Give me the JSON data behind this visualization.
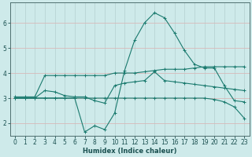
{
  "xlabel": "Humidex (Indice chaleur)",
  "background_color": "#ceeaea",
  "grid_color": "#b8d4d4",
  "line_color": "#1a7a6e",
  "xlim": [
    -0.5,
    23.5
  ],
  "ylim": [
    1.5,
    6.8
  ],
  "yticks": [
    2,
    3,
    4,
    5,
    6
  ],
  "xticks": [
    0,
    1,
    2,
    3,
    4,
    5,
    6,
    7,
    8,
    9,
    10,
    11,
    12,
    13,
    14,
    15,
    16,
    17,
    18,
    19,
    20,
    21,
    22,
    23
  ],
  "series": [
    {
      "x": [
        0,
        1,
        2,
        3,
        4,
        5,
        6,
        7,
        8,
        9,
        10,
        11,
        12,
        13,
        14,
        15,
        16,
        17,
        18,
        19,
        20,
        21,
        22,
        23
      ],
      "y": [
        3.05,
        3.05,
        3.05,
        3.9,
        3.9,
        3.9,
        3.9,
        3.9,
        3.9,
        3.9,
        4.0,
        4.0,
        4.0,
        4.05,
        4.1,
        4.15,
        4.15,
        4.15,
        4.2,
        4.25,
        4.25,
        4.25,
        4.25,
        4.25
      ]
    },
    {
      "x": [
        0,
        1,
        2,
        3,
        4,
        5,
        6,
        7,
        8,
        9,
        10,
        11,
        12,
        13,
        14,
        15,
        16,
        17,
        18,
        19,
        20,
        21,
        22,
        23
      ],
      "y": [
        3.0,
        3.0,
        3.0,
        3.3,
        3.25,
        3.1,
        3.05,
        3.05,
        2.9,
        2.8,
        3.5,
        3.6,
        3.65,
        3.7,
        4.05,
        3.7,
        3.65,
        3.6,
        3.55,
        3.5,
        3.45,
        3.4,
        3.35,
        3.3
      ]
    },
    {
      "x": [
        0,
        1,
        2,
        3,
        4,
        5,
        6,
        7,
        8,
        9,
        10,
        11,
        12,
        13,
        14,
        15,
        16,
        17,
        18,
        19,
        20,
        21,
        22,
        23
      ],
      "y": [
        3.0,
        3.0,
        3.0,
        3.0,
        3.0,
        3.0,
        3.0,
        1.65,
        1.9,
        1.75,
        2.4,
        4.1,
        5.3,
        6.0,
        6.4,
        6.2,
        5.6,
        4.9,
        4.35,
        4.2,
        4.2,
        3.5,
        2.9,
        2.85
      ]
    },
    {
      "x": [
        0,
        1,
        2,
        3,
        4,
        5,
        6,
        7,
        8,
        9,
        10,
        11,
        12,
        13,
        14,
        15,
        16,
        17,
        18,
        19,
        20,
        21,
        22,
        23
      ],
      "y": [
        3.0,
        3.0,
        3.0,
        3.0,
        3.0,
        3.0,
        3.0,
        3.0,
        3.0,
        3.0,
        3.0,
        3.0,
        3.0,
        3.0,
        3.0,
        3.0,
        3.0,
        3.0,
        3.0,
        3.0,
        2.95,
        2.85,
        2.65,
        2.2
      ]
    }
  ]
}
